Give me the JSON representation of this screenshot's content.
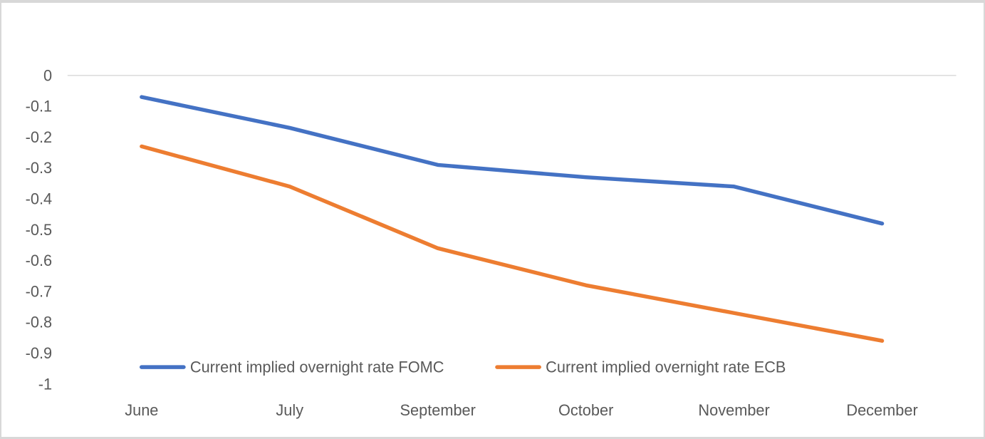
{
  "page": {
    "background": "#ffffff",
    "frame_border_color": "#d8d8d8"
  },
  "chart_data": {
    "type": "line",
    "categories": [
      "June",
      "July",
      "September",
      "October",
      "November",
      "December"
    ],
    "series": [
      {
        "name": "Current implied overnight rate FOMC",
        "color": "#4472C4",
        "values": [
          -0.07,
          -0.17,
          -0.29,
          -0.33,
          -0.36,
          -0.48
        ]
      },
      {
        "name": "Current implied overnight rate ECB",
        "color": "#ED7D31",
        "values": [
          -0.23,
          -0.36,
          -0.56,
          -0.68,
          -0.77,
          -0.86
        ]
      }
    ],
    "title": "",
    "xlabel": "",
    "ylabel": "",
    "ylim": [
      -1,
      0
    ],
    "ytick_step": 0.1,
    "yticks": [
      "0",
      "-0.1",
      "-0.2",
      "-0.3",
      "-0.4",
      "-0.5",
      "-0.6",
      "-0.7",
      "-0.8",
      "-0.9",
      "-1"
    ],
    "grid": "zero-line-only",
    "legend_position": "bottom-inside",
    "axis_text_color": "#595959",
    "gridline_color": "#D9D9D9"
  }
}
